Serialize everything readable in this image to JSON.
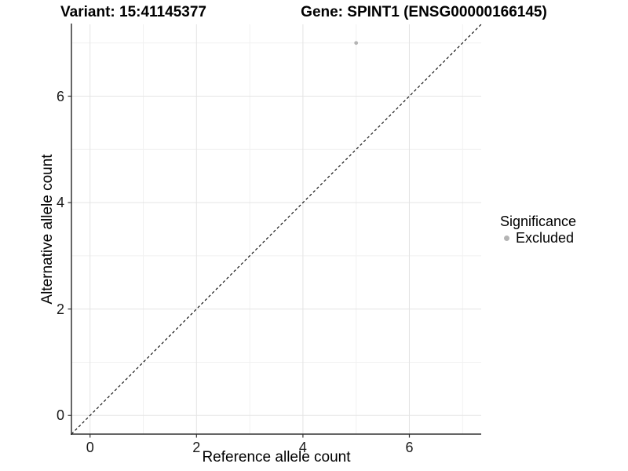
{
  "chart_data": {
    "type": "scatter",
    "title_left": "Variant: 15:41145377",
    "title_right": "Gene: SPINT1 (ENSG00000166145)",
    "xlabel": "Reference allele count",
    "ylabel": "Alternative allele count",
    "xlim": [
      -0.35,
      7.35
    ],
    "ylim": [
      -0.35,
      7.35
    ],
    "xticks": [
      0,
      2,
      4,
      6
    ],
    "yticks": [
      0,
      2,
      4,
      6
    ],
    "minor_xticks": [
      1,
      3,
      5,
      7
    ],
    "minor_yticks": [
      1,
      3,
      5,
      7
    ],
    "grid": true,
    "points": [
      {
        "x": 5,
        "y": 7,
        "series": "Excluded"
      }
    ],
    "reference_line": {
      "kind": "identity-diagonal",
      "style": "dashed",
      "from": [
        -0.35,
        -0.35
      ],
      "to": [
        7.35,
        7.35
      ]
    },
    "legend": {
      "position": "right",
      "title": "Significance",
      "entries": [
        {
          "label": "Excluded",
          "color": "#b4b4b4"
        }
      ]
    }
  },
  "colors": {
    "background": "#ffffff",
    "grid_major": "#e4e4e4",
    "grid_minor": "#f1f1f1",
    "axis_line": "#333333",
    "tick_mark": "#333333",
    "point": "#b4b4b4",
    "diagonal": "#000000",
    "text": "#000000"
  }
}
